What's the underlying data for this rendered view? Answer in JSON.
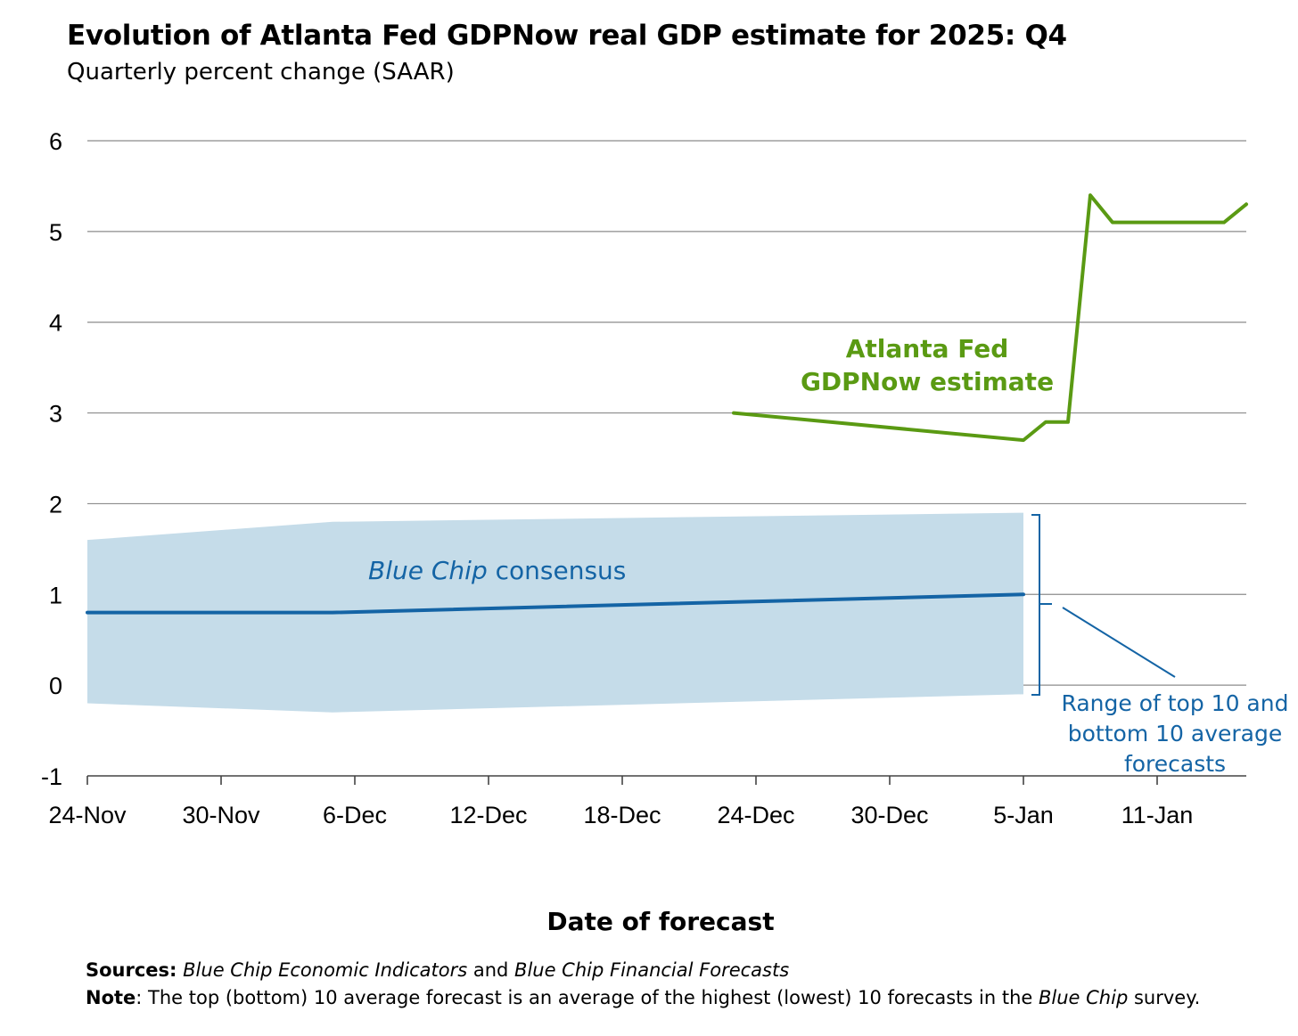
{
  "title": "Evolution of Atlanta Fed GDPNow real GDP estimate for 2025: Q4",
  "subtitle": "Quarterly percent change (SAAR)",
  "chart_data": {
    "type": "line",
    "xlabel": "Date of forecast",
    "ylim": [
      -1,
      6
    ],
    "yticks": [
      6,
      5,
      4,
      3,
      2,
      1,
      0,
      -1
    ],
    "xticks": [
      "24-Nov",
      "30-Nov",
      "6-Dec",
      "12-Dec",
      "18-Dec",
      "24-Dec",
      "30-Dec",
      "5-Jan",
      "11-Jan"
    ],
    "x_range": [
      "2025-11-24",
      "2026-01-15"
    ],
    "grid": true,
    "series": [
      {
        "name": "Atlanta Fed GDPNow estimate",
        "color": "#5a9a13",
        "points": [
          {
            "date": "2025-12-23",
            "value": 3.0
          },
          {
            "date": "2026-01-05",
            "value": 2.7
          },
          {
            "date": "2026-01-06",
            "value": 2.9
          },
          {
            "date": "2026-01-07",
            "value": 2.9
          },
          {
            "date": "2026-01-08",
            "value": 5.4
          },
          {
            "date": "2026-01-09",
            "value": 5.1
          },
          {
            "date": "2026-01-14",
            "value": 5.1
          },
          {
            "date": "2026-01-15",
            "value": 5.3
          }
        ]
      },
      {
        "name": "Blue Chip consensus",
        "color": "#1464a5",
        "points": [
          {
            "date": "2025-11-24",
            "value": 0.8
          },
          {
            "date": "2025-12-05",
            "value": 0.8
          },
          {
            "date": "2026-01-05",
            "value": 1.0
          }
        ]
      }
    ],
    "range_band": {
      "name": "Range of top 10 and bottom 10 average forecasts",
      "color": "#c5dce9",
      "upper": [
        {
          "date": "2025-11-24",
          "value": 1.6
        },
        {
          "date": "2025-12-05",
          "value": 1.8
        },
        {
          "date": "2026-01-05",
          "value": 1.9
        }
      ],
      "lower": [
        {
          "date": "2025-11-24",
          "value": -0.2
        },
        {
          "date": "2025-12-05",
          "value": -0.3
        },
        {
          "date": "2026-01-05",
          "value": -0.1
        }
      ]
    },
    "annotations": {
      "gdpnow_line1": "Atlanta Fed",
      "gdpnow_line2": "GDPNow estimate",
      "bluechip_italic": "Blue Chip",
      "bluechip_rest": " consensus",
      "range_line1": "Range of top 10 and",
      "range_line2": "bottom 10 average",
      "range_line3": "forecasts"
    },
    "colors": {
      "gdpnow": "#5a9a13",
      "bluechip": "#1464a5",
      "band": "#c5dce9",
      "grid": "#8c8c8c"
    }
  },
  "footer": {
    "sources_label": "Sources:",
    "sources_italic1": "Blue Chip Economic Indicators",
    "sources_and": " and ",
    "sources_italic2": "Blue Chip Financial Forecasts",
    "note_label": "Note",
    "note_text": ": The top (bottom) 10 average forecast is an average of the highest (lowest) 10 forecasts in the ",
    "note_italic": "Blue Chip",
    "note_end": " survey."
  }
}
